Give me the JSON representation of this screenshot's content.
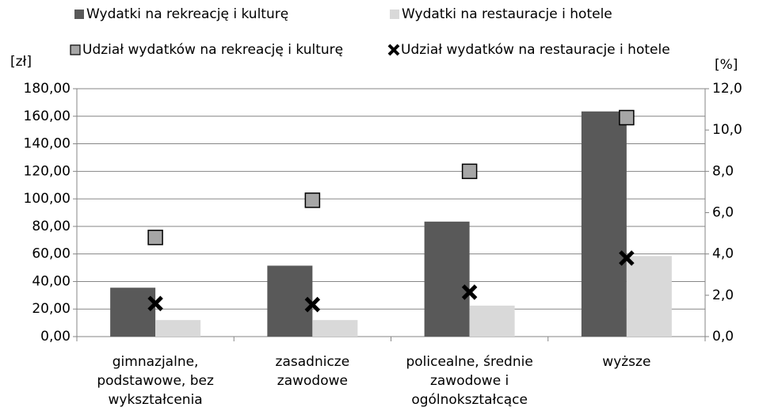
{
  "chart_data": {
    "type": "bar",
    "categories": [
      "gimnazjalne,\npodstawowe, bez\nwykształcenia",
      "zasadnicze\nzawodowe",
      "policealne, średnie\nzawodowe i\nogólnokształcące",
      "wyższe"
    ],
    "y_label": "[zł]",
    "y2_label": "[%]",
    "ylim": [
      0,
      180
    ],
    "yticks": [
      {
        "value": 0,
        "label": "0,00"
      },
      {
        "value": 20,
        "label": "20,00"
      },
      {
        "value": 40,
        "label": "40,00"
      },
      {
        "value": 60,
        "label": "60,00"
      },
      {
        "value": 80,
        "label": "80,00"
      },
      {
        "value": 100,
        "label": "100,00"
      },
      {
        "value": 120,
        "label": "120,00"
      },
      {
        "value": 140,
        "label": "140,00"
      },
      {
        "value": 160,
        "label": "160,00"
      },
      {
        "value": 180,
        "label": "180,00"
      }
    ],
    "y2lim": [
      0,
      12
    ],
    "y2ticks": [
      {
        "value": 0,
        "label": "0,0"
      },
      {
        "value": 2,
        "label": "2,0"
      },
      {
        "value": 4,
        "label": "4,0"
      },
      {
        "value": 6,
        "label": "6,0"
      },
      {
        "value": 8,
        "label": "8,0"
      },
      {
        "value": 10,
        "label": "10,0"
      },
      {
        "value": 12,
        "label": "12,0"
      }
    ],
    "legend": "top",
    "series": [
      {
        "name": "Wydatki na rekreację i kulturę",
        "type": "bar",
        "color": "#595959",
        "values": [
          35.5,
          51.5,
          83.5,
          163.5
        ]
      },
      {
        "name": "Wydatki na restauracje i hotele",
        "type": "bar",
        "color": "#d9d9d9",
        "values": [
          12,
          12,
          22.5,
          58.5
        ]
      },
      {
        "name": "Udział wydatków na rekreację i kulturę",
        "type": "scatter",
        "marker": "square",
        "axis": "y2",
        "color": "#a6a6a6",
        "values": [
          4.8,
          6.6,
          8.0,
          10.6
        ]
      },
      {
        "name": "Udział wydatków na restauracje i hotele",
        "type": "scatter",
        "marker": "x",
        "axis": "y2",
        "color": "#000000",
        "values": [
          1.6,
          1.55,
          2.15,
          3.8
        ]
      }
    ]
  }
}
